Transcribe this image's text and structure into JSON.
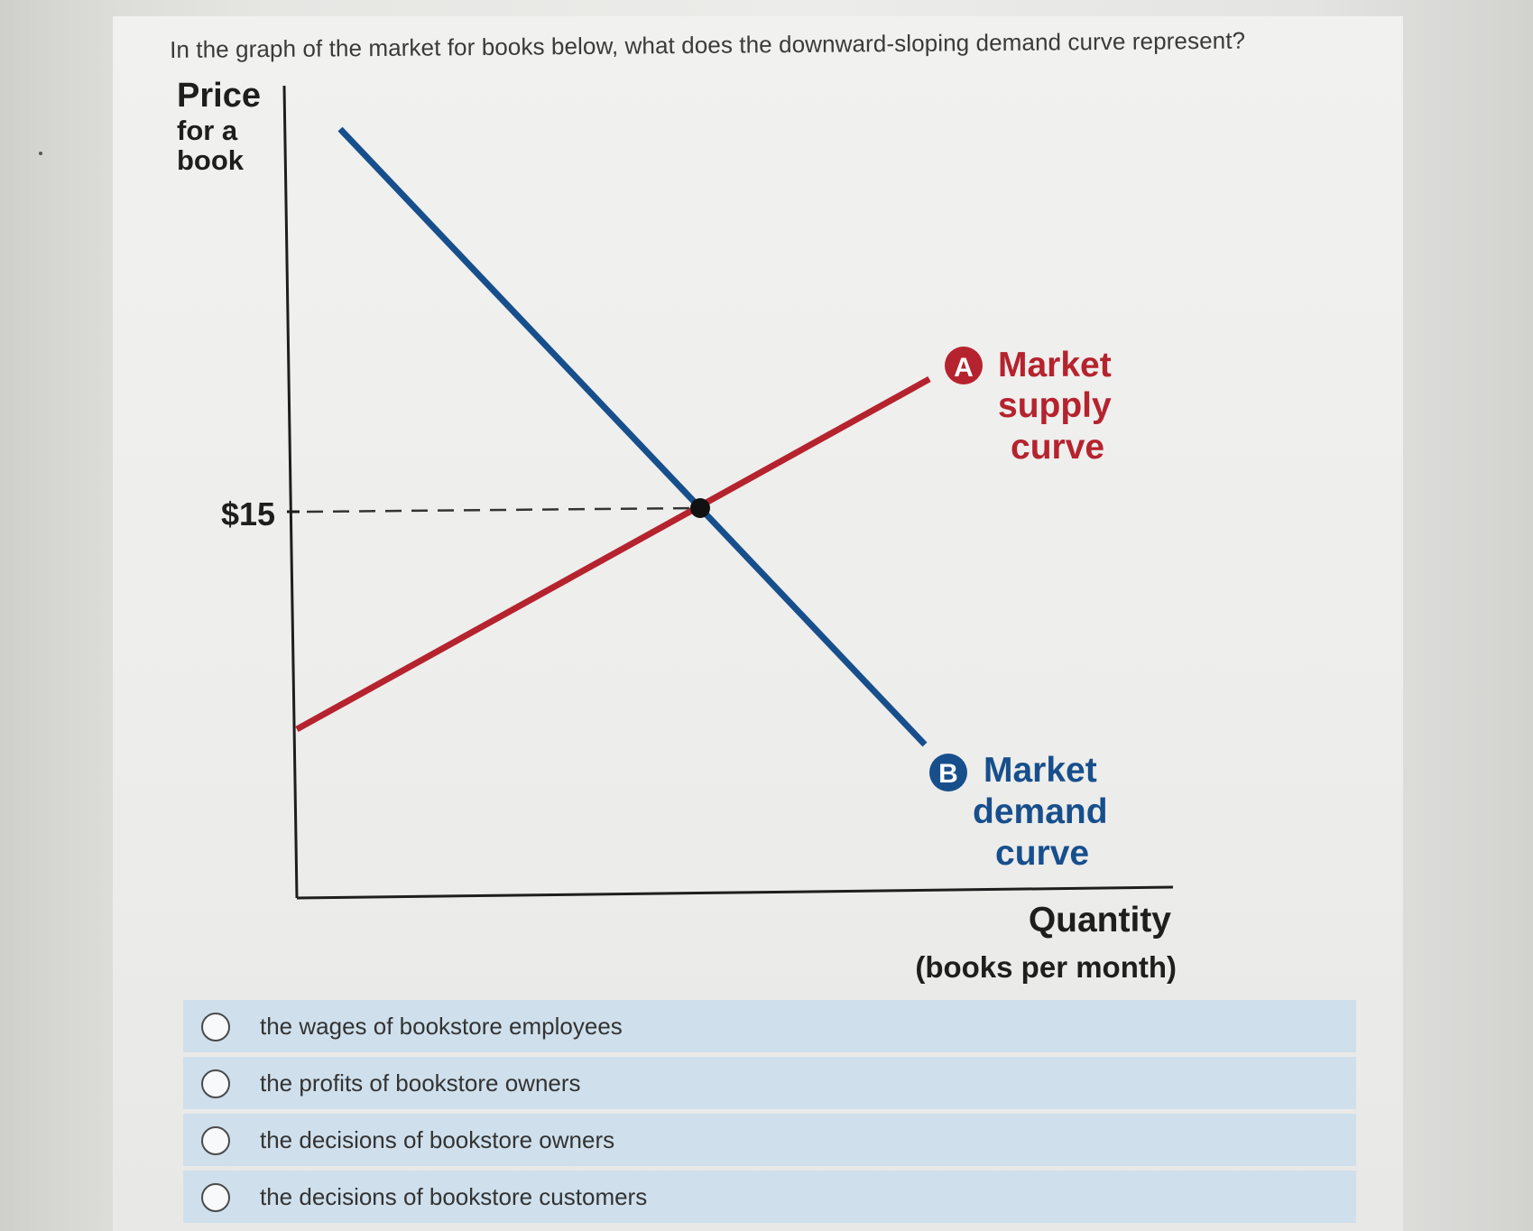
{
  "question": {
    "text": "In the graph of the market for books below, what does the downward-sloping demand curve represent?"
  },
  "chart_data": {
    "type": "line",
    "yaxis": {
      "title": "Price",
      "subtitle_line1": "for a",
      "subtitle_line2": "book",
      "tick_label": "$15",
      "tick_value": 15
    },
    "xaxis": {
      "title": "Quantity",
      "subtitle": "(books per month)"
    },
    "series": [
      {
        "name": "Market supply curve",
        "marker": "A",
        "label_line1": "Market",
        "label_line2": "supply",
        "label_line3": "curve",
        "color": "#b5232e",
        "slope": "upward"
      },
      {
        "name": "Market demand curve",
        "marker": "B",
        "label_line1": "Market",
        "label_line2": "demand",
        "label_line3": "curve",
        "color": "#174f8c",
        "slope": "downward"
      }
    ],
    "equilibrium": {
      "price": 15
    }
  },
  "options": [
    {
      "label": "the wages of bookstore employees"
    },
    {
      "label": "the profits of bookstore owners"
    },
    {
      "label": "the decisions of bookstore owners"
    },
    {
      "label": "the decisions of bookstore customers"
    }
  ]
}
